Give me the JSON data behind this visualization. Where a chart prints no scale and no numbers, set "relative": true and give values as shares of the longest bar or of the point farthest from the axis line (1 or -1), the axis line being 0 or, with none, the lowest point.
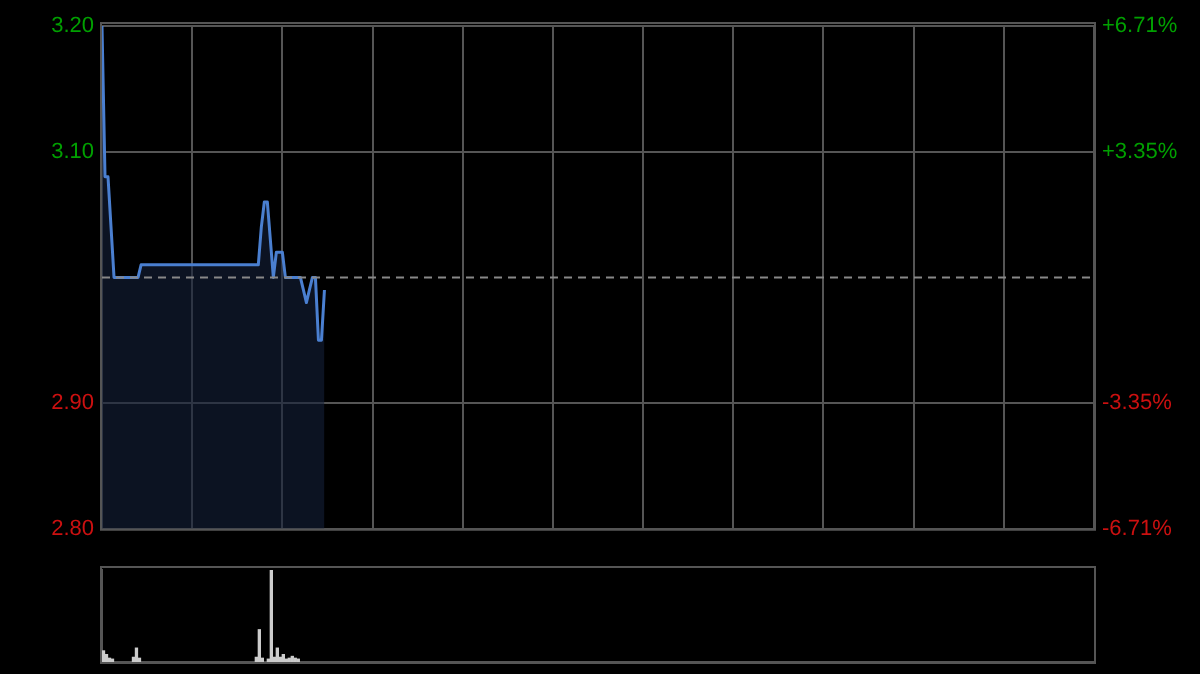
{
  "chart_data": [
    {
      "type": "area",
      "categories": [
        null,
        null,
        null,
        null,
        null,
        null,
        null,
        null,
        null,
        null,
        null,
        null,
        null,
        null,
        null,
        null,
        null,
        null,
        null,
        null,
        null,
        null,
        null,
        null,
        null,
        null,
        null,
        null,
        null,
        null,
        null,
        null,
        null,
        null,
        null,
        null,
        null,
        null,
        null,
        null,
        null,
        null,
        null,
        null,
        null,
        null,
        null,
        null,
        null,
        null,
        null,
        null,
        null,
        null,
        null,
        null,
        null,
        null,
        null,
        null,
        null,
        null,
        null,
        null,
        null,
        null,
        null,
        null,
        null,
        null,
        null,
        null,
        null,
        null,
        null,
        null,
        null,
        null,
        null,
        null,
        null,
        null,
        null,
        null,
        null,
        null,
        null,
        null,
        null,
        null,
        null,
        null,
        null,
        null,
        null,
        null,
        null,
        null,
        null,
        null,
        null,
        null,
        null,
        null,
        null,
        null,
        null,
        null,
        null,
        null,
        null,
        null,
        null,
        null,
        null,
        null,
        null,
        null,
        null,
        null,
        null,
        null,
        null,
        null,
        null,
        null,
        null,
        null,
        null,
        null,
        null,
        null,
        null,
        null,
        null,
        null,
        null,
        null,
        null,
        null,
        null,
        null,
        null,
        null,
        null,
        null,
        null,
        null,
        null,
        null,
        null,
        null,
        null,
        null,
        null,
        null,
        null,
        null,
        null,
        null,
        null,
        null,
        null,
        null,
        null,
        null,
        null,
        null,
        null,
        null,
        null,
        null,
        null,
        null,
        null,
        null,
        null,
        null,
        null,
        null,
        null,
        null,
        null,
        null,
        null,
        null,
        null,
        null,
        null,
        null,
        null,
        null,
        null,
        null,
        null,
        null,
        null,
        null,
        null,
        null,
        null,
        null,
        null,
        null,
        null,
        null,
        null,
        null,
        null,
        null,
        null,
        null,
        null,
        null,
        null,
        null,
        null,
        null,
        null,
        null,
        null,
        null,
        null,
        null,
        null,
        null,
        null,
        null,
        null,
        null,
        null,
        null,
        null,
        null,
        null,
        null,
        null,
        null,
        null,
        null,
        null,
        null,
        null,
        null,
        null,
        null,
        null,
        null,
        null,
        null,
        null,
        null,
        null,
        null,
        null,
        null,
        null,
        null,
        null,
        null,
        null,
        null,
        null,
        null,
        null,
        null,
        null,
        null,
        null,
        null,
        null,
        null,
        null,
        null,
        null,
        null,
        null,
        null,
        null,
        null,
        null,
        null,
        null,
        null,
        null,
        null,
        null,
        null,
        null,
        null,
        null,
        null,
        null,
        null,
        null,
        null,
        null,
        null,
        null,
        null,
        null,
        null,
        null,
        null,
        null,
        null,
        null,
        null,
        null,
        null,
        null,
        null,
        null,
        null,
        null,
        null,
        null,
        null,
        null,
        null,
        null,
        null,
        null,
        null,
        null,
        null,
        null,
        null,
        null,
        null,
        null
      ],
      "series": [
        {
          "color": "#4a7fd0",
          "values": [
            3.2,
            3.08,
            3.08,
            3.04,
            3.0,
            3.0,
            3.0,
            3.0,
            3.0,
            3.0,
            3.0,
            3.0,
            3.0,
            3.01,
            3.01,
            3.01,
            3.01,
            3.01,
            3.01,
            3.01,
            3.01,
            3.01,
            3.01,
            3.01,
            3.01,
            3.01,
            3.01,
            3.01,
            3.01,
            3.01,
            3.01,
            3.01,
            3.01,
            3.01,
            3.01,
            3.01,
            3.01,
            3.01,
            3.01,
            3.01,
            3.01,
            3.01,
            3.01,
            3.01,
            3.01,
            3.01,
            3.01,
            3.01,
            3.01,
            3.01,
            3.01,
            3.01,
            3.01,
            3.04,
            3.06,
            3.06,
            3.03,
            3.0,
            3.02,
            3.02,
            3.02,
            3.0,
            3.0,
            3.0,
            3.0,
            3.0,
            3.0,
            2.99,
            2.98,
            2.99,
            3.0,
            3.0,
            2.95,
            2.95,
            2.99,
            null,
            null,
            null,
            null,
            null,
            null,
            null,
            null,
            null,
            null,
            null,
            null,
            null,
            null,
            null,
            null,
            null,
            null,
            null,
            null,
            null,
            null,
            null,
            null,
            null,
            null,
            null,
            null,
            null,
            null,
            null,
            null,
            null,
            null,
            null,
            null,
            null,
            null,
            null,
            null,
            null,
            null,
            null,
            null,
            null,
            null,
            null,
            null,
            null,
            null,
            null,
            null,
            null,
            null,
            null,
            null,
            null,
            null,
            null,
            null,
            null,
            null,
            null,
            null,
            null,
            null,
            null,
            null,
            null,
            null,
            null,
            null,
            null,
            null,
            null,
            null,
            null,
            null,
            null,
            null,
            null,
            null,
            null,
            null,
            null,
            null,
            null,
            null,
            null,
            null,
            null,
            null,
            null,
            null,
            null,
            null,
            null,
            null,
            null,
            null,
            null,
            null,
            null,
            null,
            null,
            null,
            null,
            null,
            null,
            null,
            null,
            null,
            null,
            null,
            null,
            null,
            null,
            null,
            null,
            null,
            null,
            null,
            null,
            null,
            null,
            null,
            null,
            null,
            null,
            null,
            null,
            null,
            null,
            null,
            null,
            null,
            null,
            null,
            null,
            null,
            null,
            null,
            null,
            null,
            null,
            null,
            null,
            null,
            null,
            null,
            null,
            null,
            null,
            null,
            null,
            null,
            null,
            null,
            null,
            null,
            null,
            null,
            null,
            null,
            null,
            null,
            null,
            null,
            null,
            null,
            null,
            null,
            null,
            null,
            null,
            null,
            null,
            null,
            null,
            null,
            null,
            null,
            null,
            null,
            null,
            null,
            null,
            null,
            null,
            null,
            null,
            null,
            null,
            null,
            null,
            null,
            null,
            null,
            null,
            null,
            null,
            null,
            null,
            null,
            null,
            null,
            null,
            null,
            null,
            null,
            null,
            null,
            null,
            null,
            null,
            null,
            null,
            null,
            null,
            null,
            null,
            null,
            null,
            null,
            null,
            null,
            null,
            null,
            null,
            null,
            null,
            null,
            null,
            null,
            null,
            null,
            null,
            null,
            null,
            null,
            null,
            null,
            null,
            null,
            null,
            null,
            null,
            null,
            null,
            null,
            null,
            null,
            null,
            null,
            null,
            null
          ]
        }
      ],
      "ylim": [
        2.8,
        3.2
      ],
      "yticks": [
        {
          "value": 2.8,
          "label": "2.80"
        },
        {
          "value": 2.9,
          "label": "2.90"
        },
        {
          "value": 3.1,
          "label": "3.10"
        },
        {
          "value": 3.2,
          "label": "3.20"
        }
      ],
      "y2lim": [
        -6.71,
        6.71
      ],
      "y2ticks": [
        {
          "value": -6.71,
          "label": "-6.71%"
        },
        {
          "value": -3.35,
          "label": "-3.35%"
        },
        {
          "value": 3.35,
          "label": "+3.35%"
        },
        {
          "value": 6.71,
          "label": "+6.71%"
        }
      ],
      "ref_lines": [
        {
          "axis": "y",
          "value": 3.0,
          "color": "#888888",
          "line_style": "dashed"
        }
      ],
      "grid": true,
      "legend": false,
      "tick_labels": "y"
    },
    {
      "type": "bar",
      "relative": true,
      "categories": [
        null,
        null,
        null,
        null,
        null,
        null,
        null,
        null,
        null,
        null,
        null,
        null,
        null,
        null,
        null,
        null,
        null,
        null,
        null,
        null,
        null,
        null,
        null,
        null,
        null,
        null,
        null,
        null,
        null,
        null,
        null,
        null,
        null,
        null,
        null,
        null,
        null,
        null,
        null,
        null,
        null,
        null,
        null,
        null,
        null,
        null,
        null,
        null,
        null,
        null,
        null,
        null,
        null,
        null,
        null,
        null,
        null,
        null,
        null,
        null,
        null,
        null,
        null,
        null,
        null,
        null,
        null,
        null,
        null,
        null,
        null,
        null,
        null,
        null,
        null,
        null,
        null,
        null,
        null,
        null,
        null,
        null,
        null,
        null,
        null,
        null,
        null,
        null,
        null,
        null,
        null,
        null,
        null,
        null,
        null,
        null,
        null,
        null,
        null,
        null,
        null,
        null,
        null,
        null,
        null,
        null,
        null,
        null,
        null,
        null,
        null,
        null,
        null,
        null,
        null,
        null,
        null,
        null,
        null,
        null,
        null,
        null,
        null,
        null,
        null,
        null,
        null,
        null,
        null,
        null,
        null,
        null,
        null,
        null,
        null,
        null,
        null,
        null,
        null,
        null,
        null,
        null,
        null,
        null,
        null,
        null,
        null,
        null,
        null,
        null,
        null,
        null,
        null,
        null,
        null,
        null,
        null,
        null,
        null,
        null,
        null,
        null,
        null,
        null,
        null,
        null,
        null,
        null,
        null,
        null,
        null,
        null,
        null,
        null,
        null,
        null,
        null,
        null,
        null,
        null,
        null,
        null,
        null,
        null,
        null,
        null,
        null,
        null,
        null,
        null,
        null,
        null,
        null,
        null,
        null,
        null,
        null,
        null,
        null,
        null,
        null,
        null,
        null,
        null,
        null,
        null,
        null,
        null,
        null,
        null,
        null,
        null,
        null,
        null,
        null,
        null,
        null,
        null,
        null,
        null,
        null,
        null,
        null,
        null,
        null,
        null,
        null,
        null,
        null,
        null,
        null,
        null,
        null,
        null,
        null,
        null,
        null,
        null,
        null,
        null,
        null,
        null,
        null,
        null,
        null,
        null,
        null,
        null,
        null,
        null,
        null,
        null,
        null,
        null,
        null,
        null,
        null,
        null,
        null,
        null,
        null,
        null,
        null,
        null,
        null,
        null,
        null,
        null,
        null,
        null,
        null,
        null,
        null,
        null,
        null,
        null,
        null,
        null,
        null,
        null,
        null,
        null,
        null,
        null,
        null,
        null,
        null,
        null,
        null,
        null,
        null,
        null,
        null,
        null,
        null,
        null,
        null,
        null,
        null,
        null,
        null,
        null,
        null,
        null,
        null,
        null,
        null,
        null,
        null,
        null,
        null,
        null,
        null,
        null,
        null,
        null,
        null,
        null,
        null,
        null,
        null,
        null,
        null,
        null,
        null,
        null,
        null,
        null,
        null,
        null,
        null
      ],
      "series": [
        {
          "color": "#cccccc",
          "values": [
            0.12,
            0.08,
            0.04,
            0.03,
            null,
            null,
            null,
            null,
            null,
            null,
            0.05,
            0.15,
            0.04,
            null,
            null,
            null,
            null,
            null,
            null,
            null,
            null,
            null,
            null,
            null,
            null,
            null,
            null,
            null,
            null,
            null,
            null,
            null,
            null,
            null,
            null,
            null,
            null,
            null,
            null,
            null,
            null,
            null,
            null,
            null,
            null,
            null,
            null,
            null,
            null,
            null,
            null,
            0.05,
            0.35,
            0.04,
            null,
            0.03,
            1,
            0.05,
            0.15,
            0.05,
            0.08,
            0.03,
            0.04,
            0.06,
            0.04,
            0.03,
            null,
            null,
            null,
            null,
            null,
            null,
            null,
            null,
            null,
            null,
            null,
            null,
            null,
            null,
            null,
            null,
            null,
            null,
            null,
            null,
            null,
            null,
            null,
            null,
            null,
            null,
            null,
            null,
            null,
            null,
            null,
            null,
            null,
            null,
            null,
            null,
            null,
            null,
            null,
            null,
            null,
            null,
            null,
            null,
            null,
            null,
            null,
            null,
            null,
            null,
            null,
            null,
            null,
            null,
            null,
            null,
            null,
            null,
            null,
            null,
            null,
            null,
            null,
            null,
            null,
            null,
            null,
            null,
            null,
            null,
            null,
            null,
            null,
            null,
            null,
            null,
            null,
            null,
            null,
            null,
            null,
            null,
            null,
            null,
            null,
            null,
            null,
            null,
            null,
            null,
            null,
            null,
            null,
            null,
            null,
            null,
            null,
            null,
            null,
            null,
            null,
            null,
            null,
            null,
            null,
            null,
            null,
            null,
            null,
            null,
            null,
            null,
            null,
            null,
            null,
            null,
            null,
            null,
            null,
            null,
            null,
            null,
            null,
            null,
            null,
            null,
            null,
            null,
            null,
            null,
            null,
            null,
            null,
            null,
            null,
            null,
            null,
            null,
            null,
            null,
            null,
            null,
            null,
            null,
            null,
            null,
            null,
            null,
            null,
            null,
            null,
            null,
            null,
            null,
            null,
            null,
            null,
            null,
            null,
            null,
            null,
            null,
            null,
            null,
            null,
            null,
            null,
            null,
            null,
            null,
            null,
            null,
            null,
            null,
            null,
            null,
            null,
            null,
            null,
            null,
            null,
            null,
            null,
            null,
            null,
            null,
            null,
            null,
            null,
            null,
            null,
            null,
            null,
            null,
            null,
            null,
            null,
            null,
            null,
            null,
            null,
            null,
            null,
            null,
            null,
            null,
            null,
            null,
            null,
            null,
            null,
            null,
            null,
            null,
            null,
            null,
            null,
            null,
            null,
            null,
            null,
            null,
            null,
            null,
            null,
            null,
            null,
            null,
            null,
            null,
            null,
            null,
            null,
            null,
            null,
            null,
            null,
            null,
            null,
            null,
            null,
            null,
            null,
            null,
            null,
            null,
            null,
            null,
            null,
            null,
            null,
            null,
            null,
            null,
            null,
            null,
            null,
            null,
            null,
            null,
            null,
            null,
            null,
            null,
            null
          ]
        }
      ],
      "legend": false,
      "tick_labels": false
    }
  ]
}
